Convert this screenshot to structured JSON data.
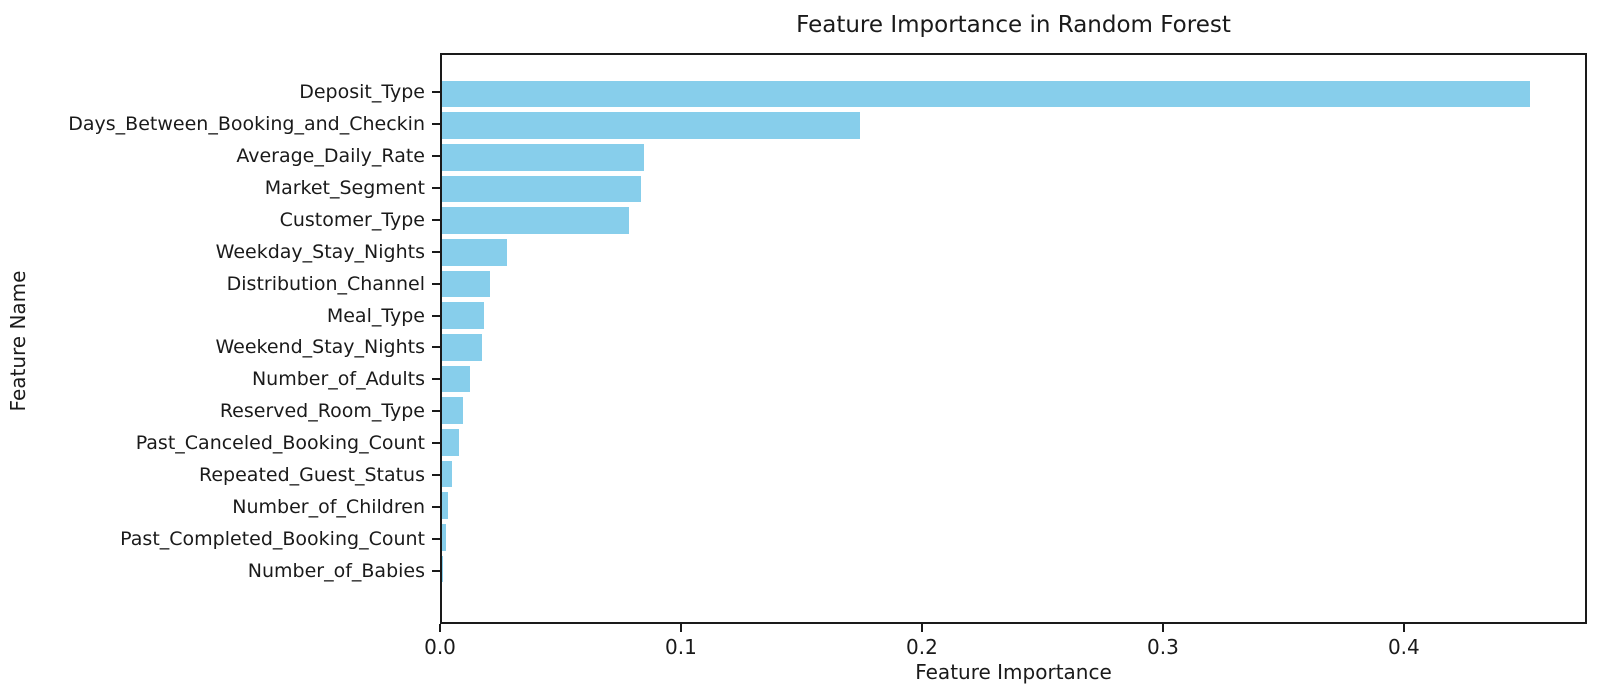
{
  "chart_data": {
    "type": "bar",
    "orientation": "horizontal",
    "title": "Feature Importance in Random Forest",
    "xlabel": "Feature Importance",
    "ylabel": "Feature Name",
    "categories": [
      "Deposit_Type",
      "Days_Between_Booking_and_Checkin",
      "Average_Daily_Rate",
      "Market_Segment",
      "Customer_Type",
      "Weekday_Stay_Nights",
      "Distribution_Channel",
      "Meal_Type",
      "Weekend_Stay_Nights",
      "Number_of_Adults",
      "Reserved_Room_Type",
      "Past_Canceled_Booking_Count",
      "Repeated_Guest_Status",
      "Number_of_Children",
      "Past_Completed_Booking_Count",
      "Number_of_Babies"
    ],
    "values": [
      0.453,
      0.174,
      0.084,
      0.083,
      0.078,
      0.027,
      0.02,
      0.0173,
      0.0167,
      0.0117,
      0.0088,
      0.0069,
      0.0042,
      0.0024,
      0.0018,
      0.0003
    ],
    "xticks": [
      0.0,
      0.1,
      0.2,
      0.3,
      0.4
    ],
    "xlim": [
      0,
      0.476
    ],
    "bar_color": "#87CEEB",
    "axis_color": "#1a1a1a",
    "background_color": "#ffffff",
    "grid": false,
    "legend": false
  }
}
